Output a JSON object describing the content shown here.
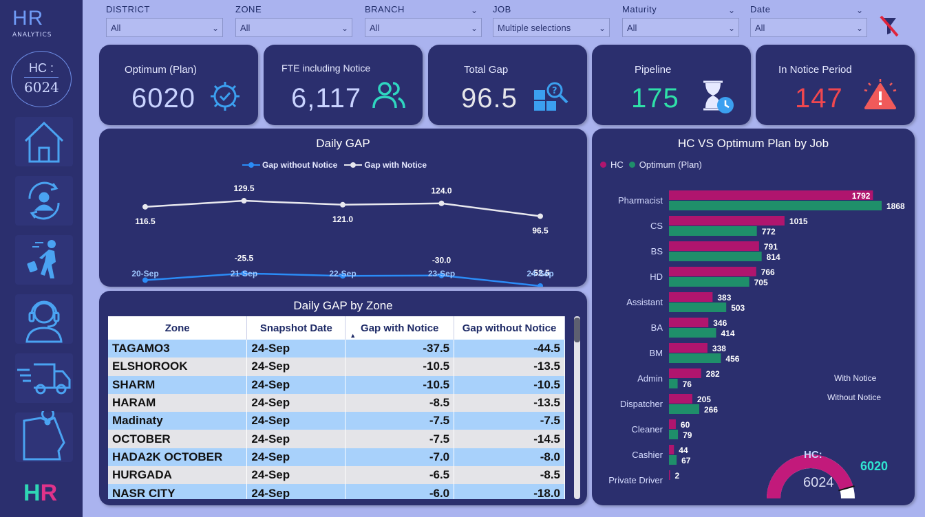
{
  "logo": {
    "title": "HR",
    "subtitle": "ANALYTICS"
  },
  "hc_badge": {
    "label": "HC :",
    "value": "6024"
  },
  "bottom_logo": {
    "h": "H",
    "r": "R"
  },
  "filters": [
    {
      "label": "DISTRICT",
      "value": "All"
    },
    {
      "label": "ZONE",
      "value": "All"
    },
    {
      "label": "BRANCH",
      "value": "All"
    },
    {
      "label": "JOB",
      "value": "Multiple selections"
    },
    {
      "label": "Maturity",
      "value": "All"
    },
    {
      "label": "Date",
      "value": "All"
    }
  ],
  "kpis": [
    {
      "title": "Optimum (Plan)",
      "value": "6020",
      "color": "#c9d3ff"
    },
    {
      "title": "FTE including Notice",
      "value": "6,117",
      "color": "#c9d3ff"
    },
    {
      "title": "Total Gap",
      "value": "96.5",
      "color": "#e6e6ea"
    },
    {
      "title": "Pipeline",
      "value": "175",
      "color": "#2fe0a8"
    },
    {
      "title": "In Notice Period",
      "value": "147",
      "color": "#f0474f"
    }
  ],
  "daily_gap": {
    "title": "Daily GAP",
    "legend": [
      "Gap without Notice",
      "Gap with Notice"
    ],
    "chart_data": {
      "type": "line",
      "categories": [
        "20-Sep",
        "21-Sep",
        "22-Sep",
        "23-Sep",
        "24-Sep"
      ],
      "series": [
        {
          "name": "Gap without Notice",
          "values": [
            -40.0,
            -25.5,
            -31.0,
            -30.0,
            -52.5
          ],
          "labels": [
            "-40.0",
            "-25.5",
            "-31.0",
            "-30.0",
            "-52.5"
          ],
          "color": "#2b8cf7"
        },
        {
          "name": "Gap with Notice",
          "values": [
            116.5,
            129.5,
            121.0,
            124.0,
            96.5
          ],
          "labels": [
            "116.5",
            "129.5",
            "121.0",
            "124.0",
            "96.5"
          ],
          "color": "#e8e8ee"
        }
      ]
    }
  },
  "zone_table": {
    "title": "Daily GAP by Zone",
    "columns": [
      "Zone",
      "Snapshot Date",
      "Gap with Notice",
      "Gap without Notice"
    ],
    "rows": [
      [
        "TAGAMO3",
        "24-Sep",
        "-37.5",
        "-44.5"
      ],
      [
        "ELSHOROOK",
        "24-Sep",
        "-10.5",
        "-13.5"
      ],
      [
        "SHARM",
        "24-Sep",
        "-10.5",
        "-10.5"
      ],
      [
        "HARAM",
        "24-Sep",
        "-8.5",
        "-13.5"
      ],
      [
        "Madinaty",
        "24-Sep",
        "-7.5",
        "-7.5"
      ],
      [
        "OCTOBER",
        "24-Sep",
        "-7.5",
        "-14.5"
      ],
      [
        "HADA2K OCTOBER",
        "24-Sep",
        "-7.0",
        "-8.0"
      ],
      [
        "HURGADA",
        "24-Sep",
        "-6.5",
        "-8.5"
      ],
      [
        "NASR CITY",
        "24-Sep",
        "-6.0",
        "-18.0"
      ]
    ]
  },
  "hc_vs_plan": {
    "title": "HC VS Optimum Plan by Job",
    "legend": [
      "HC",
      "Optimum (Plan)"
    ],
    "notes": [
      "With Notice",
      "Without Notice"
    ],
    "chart_data": {
      "type": "bar",
      "categories": [
        "Pharmacist",
        "CS",
        "BS",
        "HD",
        "Assistant",
        "BA",
        "BM",
        "Admin",
        "Dispatcher",
        "Cleaner",
        "Cashier",
        "Private Driver"
      ],
      "series": [
        {
          "name": "HC",
          "values": [
            1792,
            1015,
            791,
            766,
            383,
            346,
            338,
            282,
            205,
            60,
            44,
            2
          ],
          "color": "#b0156e"
        },
        {
          "name": "Optimum (Plan)",
          "values": [
            1868,
            772,
            814,
            705,
            503,
            414,
            456,
            76,
            266,
            79,
            67,
            null
          ],
          "color": "#1f8f6a"
        }
      ],
      "xlim": [
        0,
        1900
      ]
    }
  },
  "gauge": {
    "label": "HC:",
    "value_label": "6024",
    "target_label": "6020",
    "value": 6024,
    "target": 6020,
    "max": 6600
  }
}
